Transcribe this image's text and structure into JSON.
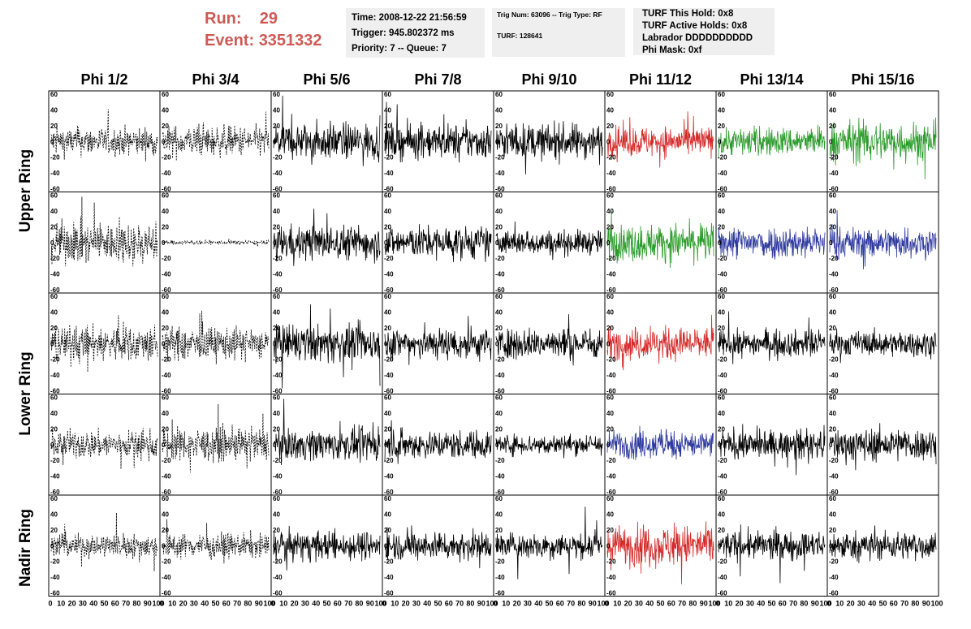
{
  "run": {
    "run_label": "Run:",
    "run_value": "29",
    "event_label": "Event:",
    "event_value": "3351332"
  },
  "time_panel": {
    "time": "Time: 2008-12-22 21:56:59",
    "trigger": "Trigger: 945.802372 ms",
    "priority": "Priority: 7 -- Queue: 7"
  },
  "trig_panel": {
    "trig": "Trig Num: 63096 -- Trig Type: RF",
    "turf": "TURF: 128641"
  },
  "turf_panel": {
    "this_hold": "TURF This Hold: 0x8",
    "active_holds": "TURF Active Holds: 0x8",
    "labrador": "Labrador DDDDDDDDDD",
    "phi_mask": "Phi Mask: 0xf"
  },
  "columns": [
    "Phi 1/2",
    "Phi 3/4",
    "Phi 5/6",
    "Phi 7/8",
    "Phi 9/10",
    "Phi 11/12",
    "Phi 13/14",
    "Phi 15/16"
  ],
  "row_groups": [
    "Upper Ring",
    "Lower Ring",
    "Nadir Ring"
  ],
  "axes": {
    "y_ticks": [
      "60",
      "40",
      "20",
      "0",
      "-20",
      "-40",
      "-60"
    ],
    "x_ticks": [
      "0",
      "10",
      "20",
      "30",
      "40",
      "50",
      "60",
      "70",
      "80",
      "90",
      "100"
    ]
  },
  "colors": {
    "black": "#000000",
    "red": "#d42a2a",
    "green": "#2a9a2a",
    "blue": "#2f3a9e",
    "run_text": "#cf5a55"
  },
  "trace_colors": [
    [
      "black",
      "black",
      "black",
      "black",
      "black",
      "red",
      "green",
      "green"
    ],
    [
      "black",
      "black",
      "black",
      "black",
      "black",
      "green",
      "blue",
      "blue"
    ],
    [
      "black",
      "black",
      "black",
      "black",
      "black",
      "red",
      "black",
      "black"
    ],
    [
      "black",
      "black",
      "black",
      "black",
      "black",
      "blue",
      "black",
      "black"
    ],
    [
      "black",
      "black",
      "black",
      "black",
      "black",
      "red",
      "black",
      "black"
    ]
  ],
  "trace_styles": [
    [
      "dashed",
      "dashed",
      "solid",
      "solid",
      "solid",
      "solid",
      "solid",
      "solid"
    ],
    [
      "dashed",
      "dashed",
      "solid",
      "solid",
      "solid",
      "solid",
      "solid",
      "solid"
    ],
    [
      "dashed",
      "dashed",
      "solid",
      "solid",
      "solid",
      "solid",
      "solid",
      "solid"
    ],
    [
      "dashed",
      "dashed",
      "solid",
      "solid",
      "solid",
      "solid",
      "solid",
      "solid"
    ],
    [
      "dashed",
      "dashed",
      "solid",
      "solid",
      "solid",
      "solid",
      "solid",
      "solid"
    ]
  ],
  "trace_amplitude": [
    [
      14,
      15,
      18,
      17,
      17,
      15,
      14,
      20
    ],
    [
      20,
      2,
      17,
      16,
      12,
      18,
      16,
      15
    ],
    [
      18,
      16,
      18,
      16,
      15,
      16,
      13,
      12
    ],
    [
      14,
      16,
      15,
      14,
      10,
      14,
      14,
      16
    ],
    [
      12,
      12,
      14,
      14,
      13,
      20,
      14,
      14
    ]
  ]
}
